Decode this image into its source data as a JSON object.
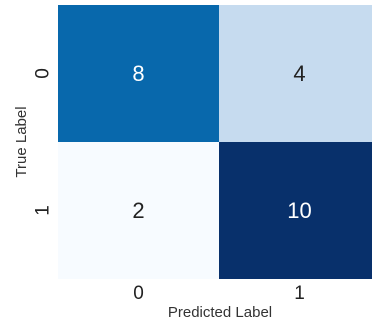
{
  "chart_data": {
    "type": "heatmap",
    "title": "",
    "xlabel": "Predicted Label",
    "ylabel": "True Label",
    "x_ticks": [
      "0",
      "1"
    ],
    "y_ticks": [
      "0",
      "1"
    ],
    "matrix": [
      [
        8,
        4
      ],
      [
        2,
        10
      ]
    ],
    "cell_colors": [
      [
        "#0868ac",
        "#c6dbef"
      ],
      [
        "#f7fbff",
        "#08306b"
      ]
    ],
    "text_colors": [
      [
        "#ffffff",
        "#222222"
      ],
      [
        "#222222",
        "#ffffff"
      ]
    ],
    "colormap": "Blues"
  }
}
